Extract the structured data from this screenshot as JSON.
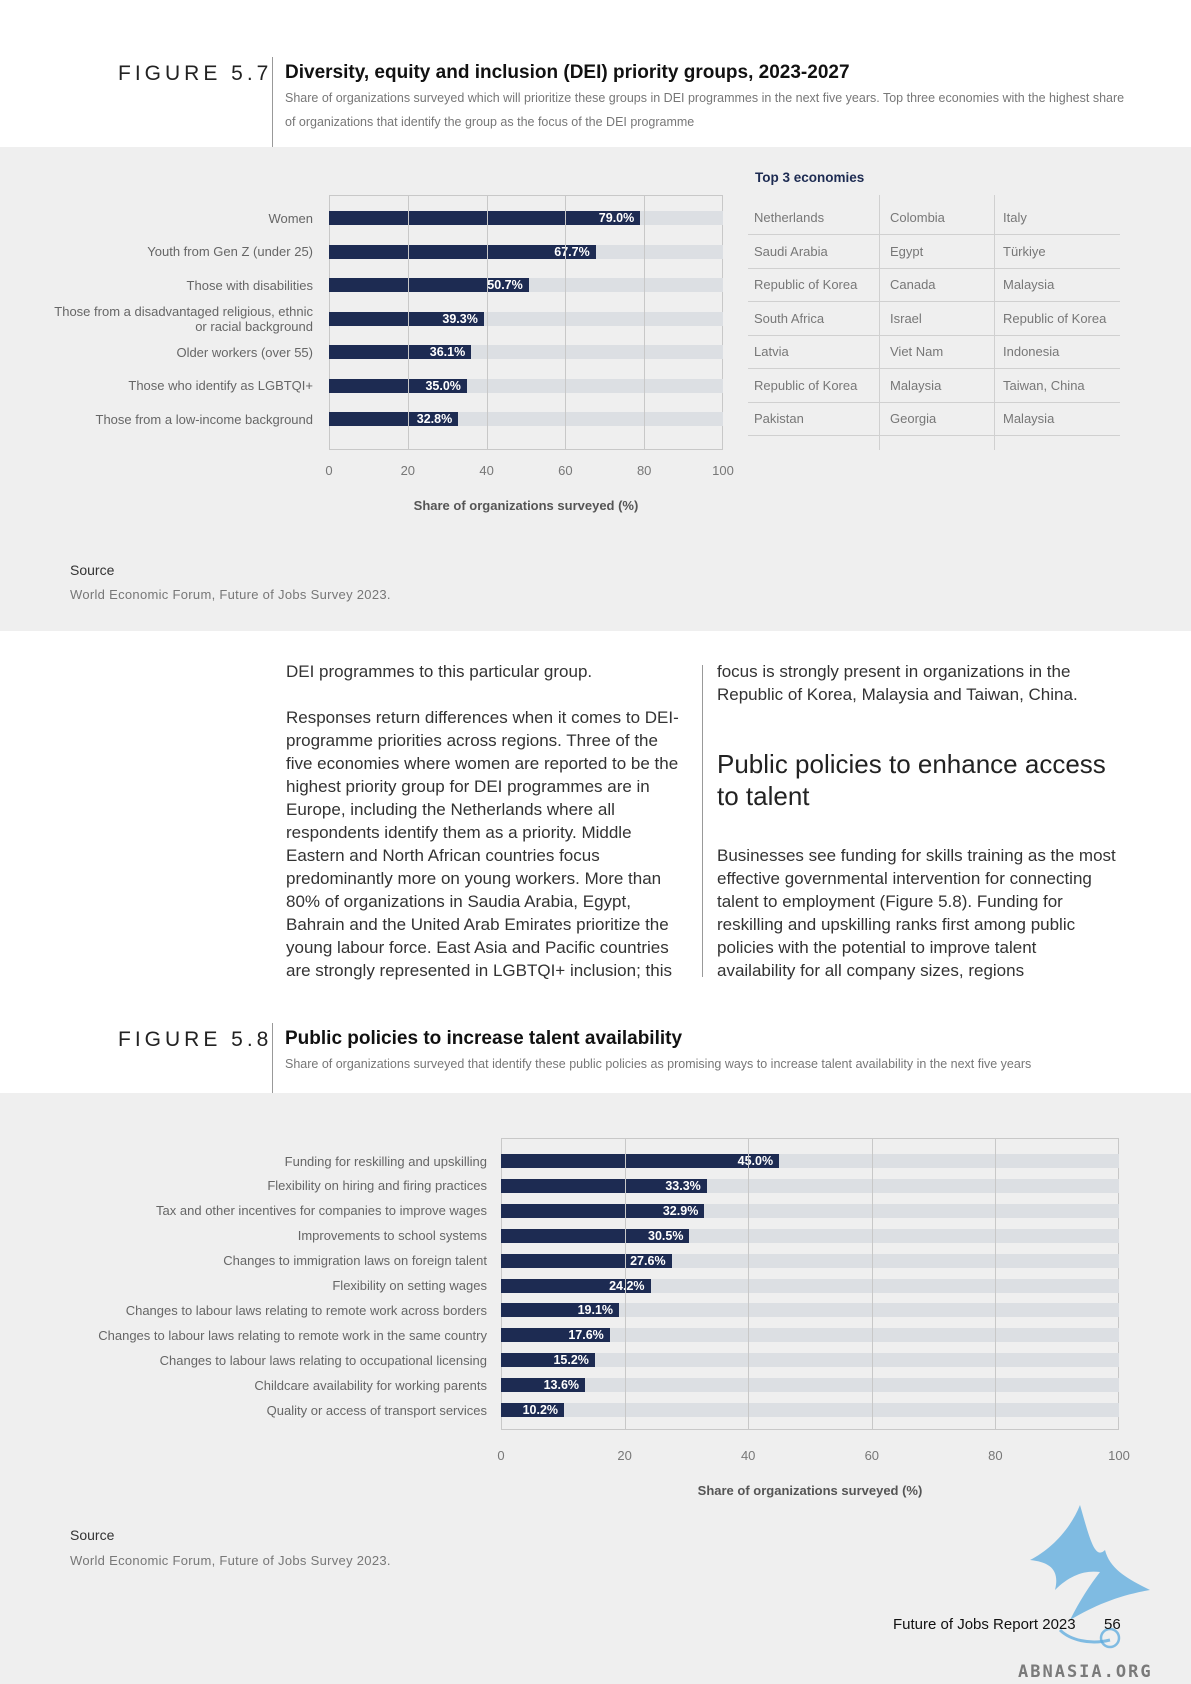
{
  "figure57": {
    "label": "FIGURE 5.7",
    "title": "Diversity, equity and inclusion (DEI) priority groups, 2023-2027",
    "subtitle": "Share of organizations surveyed which will prioritize these groups in DEI programmes in the next five years. Top three economies with the highest share of organizations that identify the group as the focus of the DEI programme",
    "top3_heading": "Top 3 economies",
    "top3_rows": [
      [
        "Netherlands",
        "Colombia",
        "Italy"
      ],
      [
        "Saudi Arabia",
        "Egypt",
        "Türkiye"
      ],
      [
        "Republic of Korea",
        "Canada",
        "Malaysia"
      ],
      [
        "South Africa",
        "Israel",
        "Republic of Korea"
      ],
      [
        "Latvia",
        "Viet Nam",
        "Indonesia"
      ],
      [
        "Republic of Korea",
        "Malaysia",
        "Taiwan, China"
      ],
      [
        "Pakistan",
        "Georgia",
        "Malaysia"
      ]
    ],
    "source_heading": "Source",
    "source_text": "World Economic Forum, Future of Jobs Survey 2023."
  },
  "figure58": {
    "label": "FIGURE 5.8",
    "title": "Public policies to increase talent availability",
    "subtitle": "Share of organizations surveyed that identify these public policies as promising ways to increase talent availability in the next five years",
    "source_heading": "Source",
    "source_text": "World Economic Forum, Future of Jobs Survey 2023."
  },
  "chart_data": [
    {
      "type": "bar",
      "orientation": "horizontal",
      "categories": [
        "Women",
        "Youth from Gen Z (under 25)",
        "Those with disabilities",
        "Those from a disadvantaged religious, ethnic or racial background",
        "Older workers (over 55)",
        "Those who identify as LGBTQI+",
        "Those from a low-income background"
      ],
      "values": [
        79.0,
        67.7,
        50.7,
        39.3,
        36.1,
        35.0,
        32.8
      ],
      "data_labels": [
        "79.0%",
        "67.7%",
        "50.7%",
        "39.3%",
        "36.1%",
        "35.0%",
        "32.8%"
      ],
      "xlabel": "Share of organizations surveyed (%)",
      "xlim": [
        0,
        100
      ],
      "xticks": [
        "0",
        "20",
        "40",
        "60",
        "80",
        "100"
      ],
      "grid": true,
      "color": "#1d2b52"
    },
    {
      "type": "bar",
      "orientation": "horizontal",
      "categories": [
        "Funding for reskilling and upskilling",
        "Flexibility on hiring and firing practices",
        "Tax and other incentives for companies to improve wages",
        "Improvements to school systems",
        "Changes to immigration laws on foreign talent",
        "Flexibility on setting wages",
        "Changes to labour laws relating to remote work across borders",
        "Changes to labour laws relating to remote work in the same country",
        "Changes to labour laws relating to occupational licensing",
        "Childcare availability for working parents",
        "Quality or access of transport services"
      ],
      "values": [
        45.0,
        33.3,
        32.9,
        30.5,
        27.6,
        24.2,
        19.1,
        17.6,
        15.2,
        13.6,
        10.2
      ],
      "data_labels": [
        "45.0%",
        "33.3%",
        "32.9%",
        "30.5%",
        "27.6%",
        "24.2%",
        "19.1%",
        "17.6%",
        "15.2%",
        "13.6%",
        "10.2%"
      ],
      "xlabel": "Share of organizations surveyed (%)",
      "xlim": [
        0,
        100
      ],
      "xticks": [
        "0",
        "20",
        "40",
        "60",
        "80",
        "100"
      ],
      "grid": true,
      "color": "#1d2b52"
    }
  ],
  "body": {
    "left_paragraphs": [
      "DEI programmes to this particular group.",
      "Responses return differences when it comes to DEI-programme priorities across regions. Three of the five economies where women are reported to be the highest priority group for DEI programmes are in Europe, including the Netherlands where all respondents identify them as a priority. Middle Eastern and North African countries focus predominantly more on young workers. More than 80% of organizations in Saudia Arabia, Egypt, Bahrain and the United Arab Emirates prioritize the young labour force. East Asia and Pacific countries are strongly represented in LGBTQI+ inclusion; this"
    ],
    "right_paragraph_1": "focus is strongly present in organizations in the Republic of Korea, Malaysia and Taiwan, China.",
    "section_heading": "Public policies to enhance access to talent",
    "right_paragraph_2": "Businesses see funding for skills training as the most effective governmental intervention for connecting talent to employment (Figure 5.8). Funding for reskilling and upskilling ranks first among public policies with the potential to improve talent availability for all company sizes, regions"
  },
  "footer": {
    "report_title": "Future of Jobs Report 2023",
    "page_number": "56",
    "watermark_text": "ABNASIA.ORG"
  }
}
